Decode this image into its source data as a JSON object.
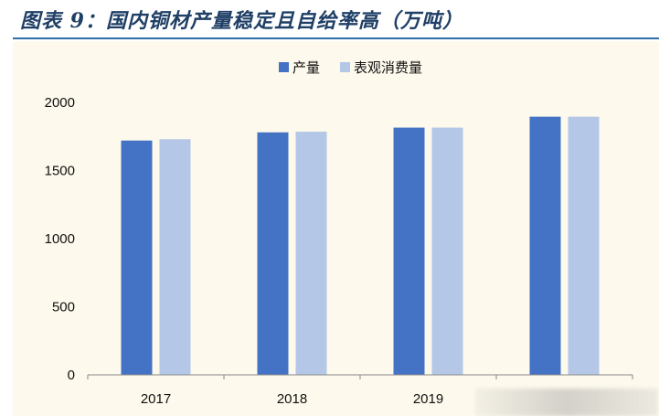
{
  "title": "图表 9：国内铜材产量稳定且自给率高（万吨）",
  "colors": {
    "title": "#1f3f66",
    "rule": "#2f6fa8",
    "panel": "#fdf9ec",
    "production": "#4472c4",
    "consumption": "#b4c7e7"
  },
  "chart_data": {
    "type": "bar",
    "categories": [
      "2017",
      "2018",
      "2019",
      ""
    ],
    "series": [
      {
        "name": "产量",
        "values": [
          1720,
          1780,
          1815,
          1895
        ]
      },
      {
        "name": "表观消费量",
        "values": [
          1730,
          1785,
          1815,
          1895
        ]
      }
    ],
    "ylim": [
      0,
      2000
    ],
    "yticks": [
      "0",
      "500",
      "1000",
      "1500",
      "2000"
    ],
    "grid": false,
    "legend": "top-center"
  }
}
